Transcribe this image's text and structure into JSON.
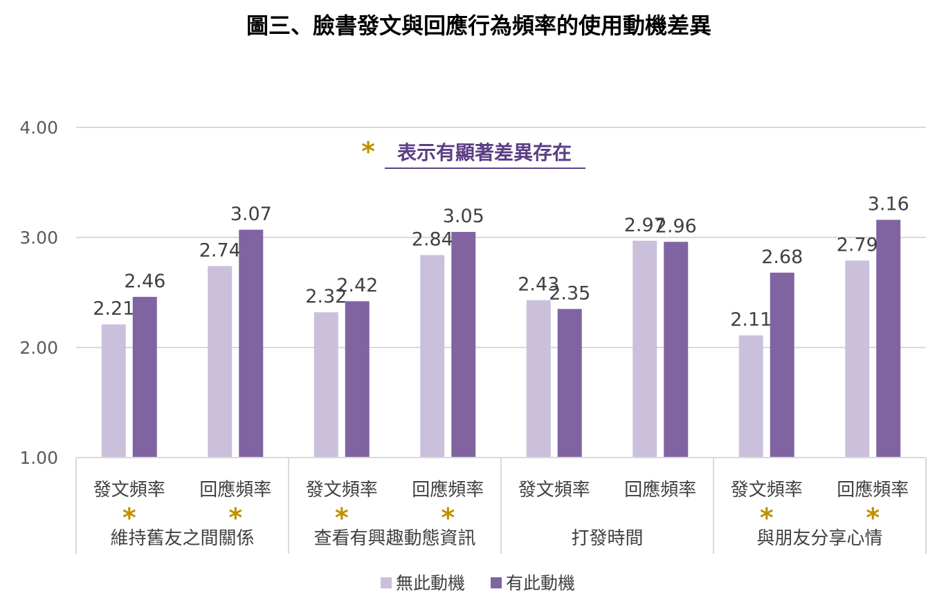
{
  "chart_data": {
    "type": "bar",
    "title": "圖三、臉書發文與回應行為頻率的使用動機差異",
    "ylim": [
      1,
      4
    ],
    "yticks": [
      "1.00",
      "2.00",
      "3.00",
      "4.00"
    ],
    "grid": true,
    "legend_position": "bottom",
    "annotation": {
      "symbol": "*",
      "text": "表示有顯著差異存在"
    },
    "groups": [
      {
        "label": "維持舊友之間關係",
        "items": [
          {
            "label": "發文頻率",
            "star": "*"
          },
          {
            "label": "回應頻率",
            "star": "*"
          }
        ]
      },
      {
        "label": "查看有興趣動態資訊",
        "items": [
          {
            "label": "發文頻率",
            "star": "*"
          },
          {
            "label": "回應頻率",
            "star": "*"
          }
        ]
      },
      {
        "label": "打發時間",
        "items": [
          {
            "label": "發文頻率",
            "star": ""
          },
          {
            "label": "回應頻率",
            "star": ""
          }
        ]
      },
      {
        "label": "與朋友分享心情",
        "items": [
          {
            "label": "發文頻率",
            "star": "*"
          },
          {
            "label": "回應頻率",
            "star": "*"
          }
        ]
      }
    ],
    "series": [
      {
        "name": "無此動機",
        "color": "#CBC0DC",
        "values": [
          2.21,
          2.74,
          2.32,
          2.84,
          2.43,
          2.97,
          2.11,
          2.79
        ],
        "labels": [
          "2.21",
          "2.74",
          "2.32",
          "2.84",
          "2.43",
          "2.97",
          "2.11",
          "2.79"
        ]
      },
      {
        "name": "有此動機",
        "color": "#8064A2",
        "values": [
          2.46,
          3.07,
          2.42,
          3.05,
          2.35,
          2.96,
          2.68,
          3.16
        ],
        "labels": [
          "2.46",
          "3.07",
          "2.42",
          "3.05",
          "2.35",
          "2.96",
          "2.68",
          "3.16"
        ]
      }
    ],
    "colors": {
      "grid": "#D9D9D9",
      "star": "#BF9000",
      "note": "#5B3E85"
    }
  }
}
